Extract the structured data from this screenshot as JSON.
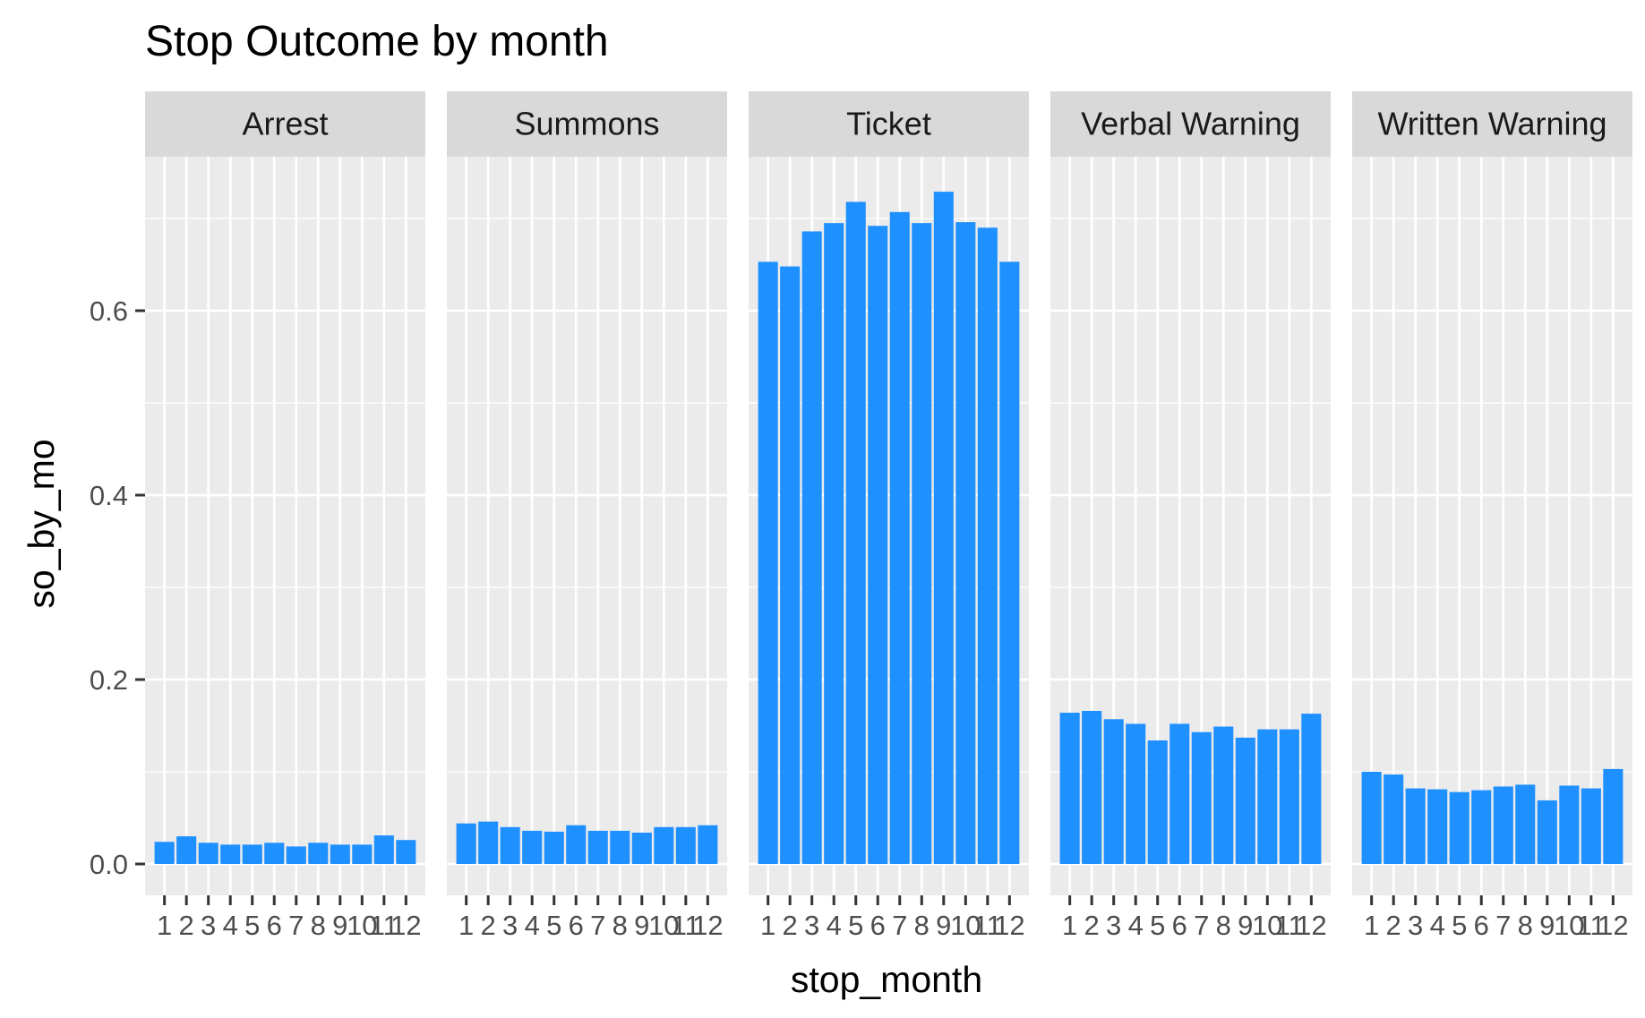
{
  "chart_data": {
    "type": "bar",
    "title": "Stop Outcome by month",
    "xlabel": "stop_month",
    "ylabel": "so_by_mo",
    "categories": [
      "1",
      "2",
      "3",
      "4",
      "5",
      "6",
      "7",
      "8",
      "9",
      "10",
      "11",
      "12"
    ],
    "yticks": [
      "0.0",
      "0.2",
      "0.4",
      "0.6"
    ],
    "ylim": [
      -0.034,
      0.767
    ],
    "grid": true,
    "facet_layout": "1 row x 5 columns",
    "bar_color": "#1E90FF",
    "panel_background": "#EBEBEB",
    "strip_background": "#D9D9D9",
    "facets": [
      {
        "name": "Arrest",
        "values": [
          0.024,
          0.03,
          0.023,
          0.021,
          0.021,
          0.023,
          0.019,
          0.023,
          0.021,
          0.021,
          0.031,
          0.026
        ]
      },
      {
        "name": "Summons",
        "values": [
          0.044,
          0.046,
          0.04,
          0.036,
          0.035,
          0.042,
          0.036,
          0.036,
          0.034,
          0.04,
          0.04,
          0.042
        ]
      },
      {
        "name": "Ticket",
        "values": [
          0.653,
          0.648,
          0.686,
          0.695,
          0.718,
          0.692,
          0.707,
          0.695,
          0.729,
          0.696,
          0.69,
          0.653
        ]
      },
      {
        "name": "Verbal Warning",
        "values": [
          0.164,
          0.166,
          0.157,
          0.152,
          0.134,
          0.152,
          0.143,
          0.149,
          0.137,
          0.146,
          0.146,
          0.163
        ]
      },
      {
        "name": "Written Warning",
        "values": [
          0.1,
          0.097,
          0.082,
          0.081,
          0.078,
          0.08,
          0.084,
          0.086,
          0.069,
          0.085,
          0.082,
          0.103
        ]
      }
    ]
  }
}
